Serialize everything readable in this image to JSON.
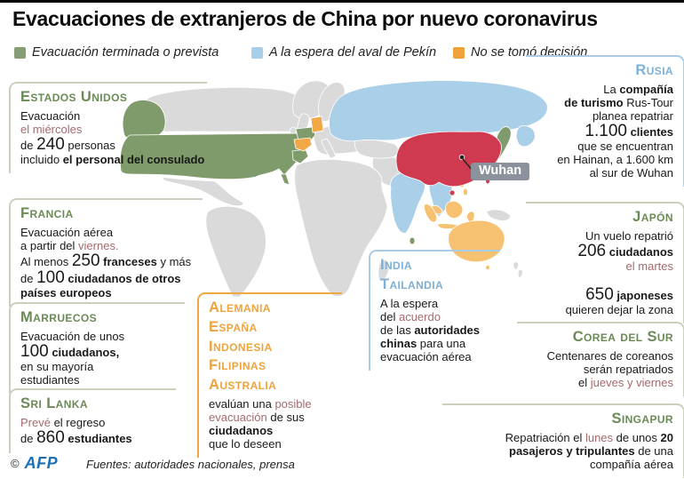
{
  "title": "Evacuaciones de extranjeros de China por nuevo coronavirus",
  "legend": [
    {
      "label": "Evacuación terminada o prevista",
      "color": "#869c74",
      "key": "terminada"
    },
    {
      "label": "A la espera del aval de Pekín",
      "color": "#a9cee9",
      "key": "espera"
    },
    {
      "label": "No se tomó decisión",
      "color": "#f0a23c",
      "key": "sin_decision"
    }
  ],
  "map": {
    "wuhan_label": "Wuhan",
    "outbreak_country": "China",
    "china_color": "#d03a50",
    "land_color": "#dadada",
    "countries_terminada": [
      "Estados Unidos",
      "Francia",
      "Marruecos",
      "Sri Lanka",
      "Japón",
      "Corea del Sur"
    ],
    "countries_espera": [
      "Rusia",
      "India",
      "Tailandia"
    ],
    "countries_sin_decision": [
      "Alemania",
      "España",
      "Indonesia",
      "Filipinas",
      "Australia"
    ]
  },
  "blocks": [
    {
      "title": "Estados Unidos",
      "segments": [
        {
          "t": "Evacuación\n"
        },
        {
          "t": "el miércoles\n",
          "s": "a"
        },
        {
          "t": "de "
        },
        {
          "t": "240",
          "s": "num"
        },
        {
          "t": " personas\nincluido "
        },
        {
          "t": "el personal del consulado",
          "s": "b"
        }
      ]
    },
    {
      "title": "Francia",
      "segments": [
        {
          "t": "Evacuación aérea\na partir del "
        },
        {
          "t": "viernes.",
          "s": "a"
        },
        {
          "t": "\nAl menos "
        },
        {
          "t": "250",
          "s": "num"
        },
        {
          "t": " "
        },
        {
          "t": "franceses",
          "s": "b"
        },
        {
          "t": " y más\nde "
        },
        {
          "t": "100",
          "s": "num"
        },
        {
          "t": " "
        },
        {
          "t": "ciudadanos de otros países europeos",
          "s": "b"
        }
      ]
    },
    {
      "title": "Marruecos",
      "segments": [
        {
          "t": "Evacuación de unos\n"
        },
        {
          "t": "100",
          "s": "num"
        },
        {
          "t": " "
        },
        {
          "t": "ciudadanos,",
          "s": "b"
        },
        {
          "t": "\nen su mayoría\nestudiantes"
        }
      ]
    },
    {
      "title": "Sri Lanka",
      "segments": [
        {
          "t": "Prevé",
          "s": "a"
        },
        {
          "t": " el regreso\nde "
        },
        {
          "t": "860",
          "s": "num"
        },
        {
          "t": " "
        },
        {
          "t": "estudiantes",
          "s": "b"
        }
      ]
    },
    {
      "title": [
        "Alemania",
        "España",
        "Indonesia",
        "Filipinas",
        "Australia"
      ],
      "segments": [
        {
          "t": "evalúan una "
        },
        {
          "t": "posible\nevacuación",
          "s": "a"
        },
        {
          "t": " de sus\n"
        },
        {
          "t": "ciudadanos",
          "s": "b"
        },
        {
          "t": "\nque lo deseen"
        }
      ]
    },
    {
      "title": [
        "India",
        "Tailandia"
      ],
      "segments": [
        {
          "t": "A la espera\ndel "
        },
        {
          "t": "acuerdo",
          "s": "a"
        },
        {
          "t": "\nde las "
        },
        {
          "t": "autoridades\nchinas",
          "s": "b"
        },
        {
          "t": " para una\nevacuación aérea"
        }
      ]
    },
    {
      "title": "Rusia",
      "segments": [
        {
          "t": "La "
        },
        {
          "t": "compañía\nde turismo",
          "s": "b"
        },
        {
          "t": " Rus-Tour\nplanea repatriar\n"
        },
        {
          "t": "1.100",
          "s": "num"
        },
        {
          "t": " "
        },
        {
          "t": "clientes",
          "s": "b"
        },
        {
          "t": "\nque se encuentran\nen Hainan, a 1.600 km\nal sur de Wuhan"
        }
      ]
    },
    {
      "title": "Japón",
      "segments": [
        {
          "t": "Un vuelo repatrió\n"
        },
        {
          "t": "206",
          "s": "num"
        },
        {
          "t": " "
        },
        {
          "t": "ciudadanos",
          "s": "b"
        },
        {
          "t": "\n"
        },
        {
          "t": "el martes",
          "s": "a"
        },
        {
          "t": "\n\n"
        },
        {
          "t": "650",
          "s": "num"
        },
        {
          "t": " "
        },
        {
          "t": "japoneses",
          "s": "b"
        },
        {
          "t": "\nquieren dejar la zona"
        }
      ]
    },
    {
      "title": "Corea del Sur",
      "segments": [
        {
          "t": "Centenares de coreanos\nserán repatriados\nel "
        },
        {
          "t": "jueves y viernes",
          "s": "a"
        }
      ]
    },
    {
      "title": "Singapur",
      "segments": [
        {
          "t": "Repatriación el "
        },
        {
          "t": "lunes",
          "s": "a"
        },
        {
          "t": " de unos "
        },
        {
          "t": "20\npasajeros y tripulantes",
          "s": "b"
        },
        {
          "t": " de una\ncompañía aérea"
        }
      ]
    }
  ],
  "footer": {
    "copyright_symbol": "©",
    "logo": "AFP",
    "sources": "Fuentes: autoridades nacionales, prensa"
  }
}
